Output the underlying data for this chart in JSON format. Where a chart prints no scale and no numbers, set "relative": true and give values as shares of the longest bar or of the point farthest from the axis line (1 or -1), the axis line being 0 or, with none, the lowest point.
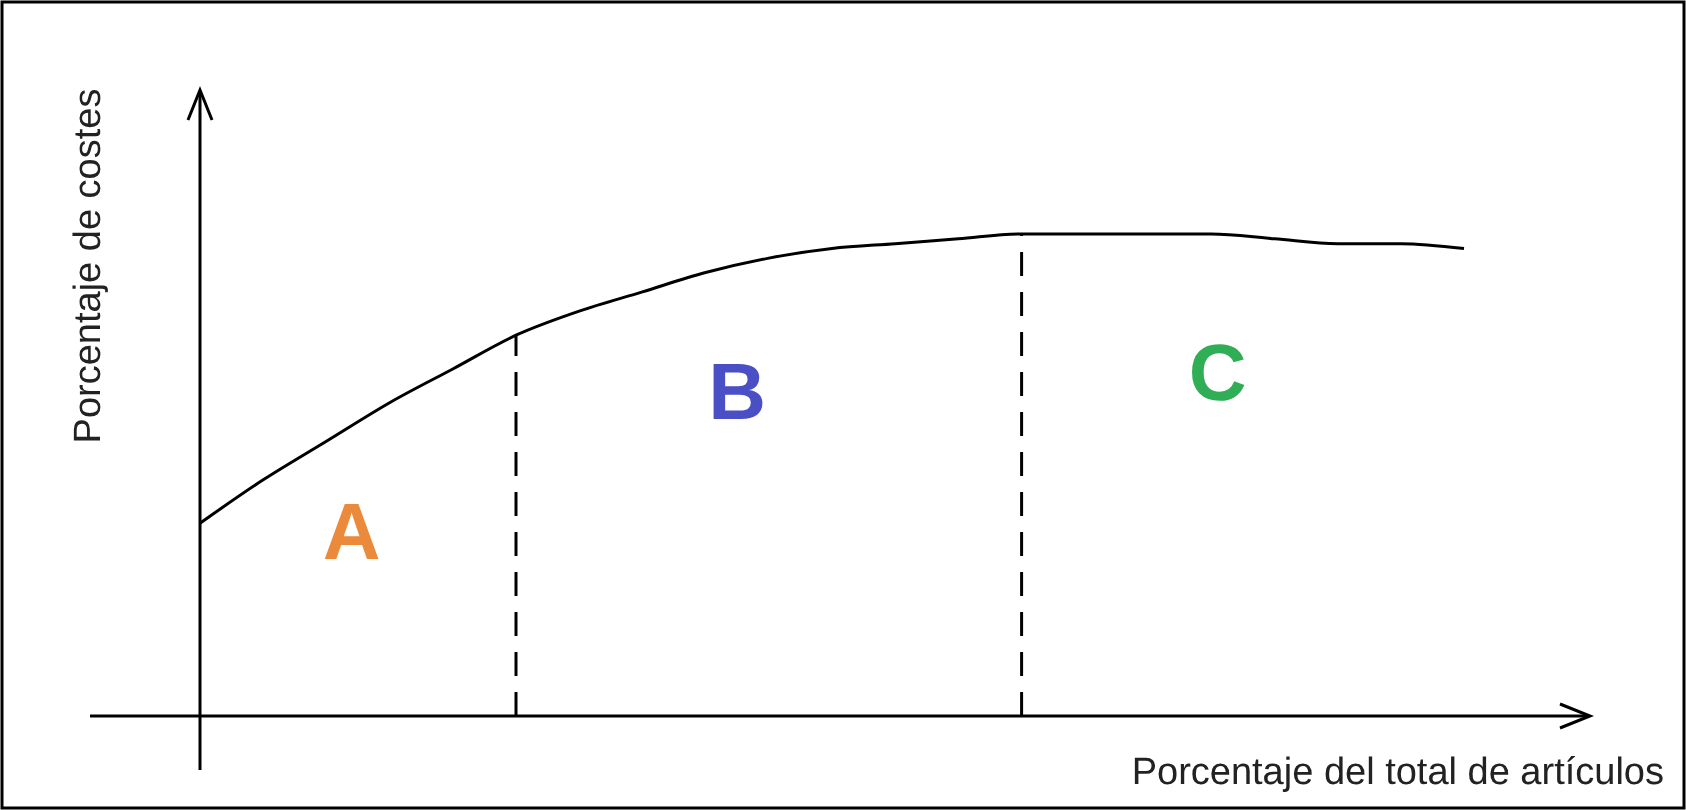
{
  "chart_data": {
    "type": "line",
    "relative": true,
    "xlabel": "Porcentaje del total de artículos",
    "ylabel": "Porcentaje de costes",
    "categories": [
      null,
      null,
      null,
      null,
      null,
      null,
      null,
      null,
      null,
      null,
      null,
      null,
      null,
      null,
      null,
      null,
      null,
      null,
      null,
      null,
      null
    ],
    "series": [
      {
        "color": "#000000",
        "values": [
          0.4,
          0.49,
          0.57,
          0.65,
          0.72,
          0.79,
          0.84,
          0.88,
          0.92,
          0.95,
          0.97,
          0.98,
          0.99,
          1,
          1,
          1,
          1,
          0.99,
          0.98,
          0.98,
          0.97
        ]
      }
    ],
    "marker": "none",
    "line_style": "solid",
    "annotations": [
      "A",
      "B",
      "C"
    ]
  }
}
